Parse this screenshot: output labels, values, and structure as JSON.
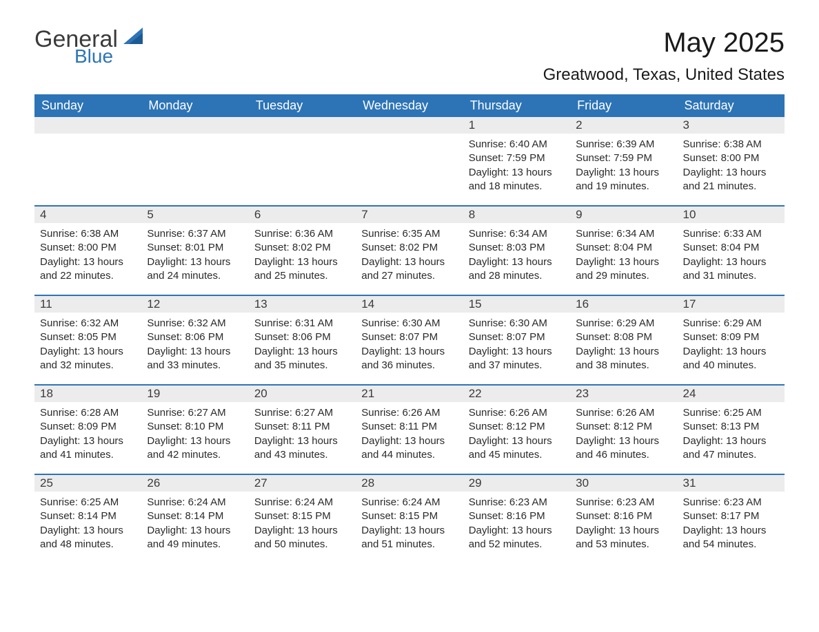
{
  "logo": {
    "general": "General",
    "blue": "Blue"
  },
  "title": "May 2025",
  "location": "Greatwood, Texas, United States",
  "colors": {
    "header_bg": "#2d74b6",
    "header_text": "#ffffff",
    "daynum_bg": "#ececec",
    "border": "#2d74b6",
    "text": "#2a2a2a"
  },
  "weekdays": [
    "Sunday",
    "Monday",
    "Tuesday",
    "Wednesday",
    "Thursday",
    "Friday",
    "Saturday"
  ],
  "weeks": [
    [
      null,
      null,
      null,
      null,
      {
        "n": "1",
        "sunrise": "Sunrise: 6:40 AM",
        "sunset": "Sunset: 7:59 PM",
        "d1": "Daylight: 13 hours",
        "d2": "and 18 minutes."
      },
      {
        "n": "2",
        "sunrise": "Sunrise: 6:39 AM",
        "sunset": "Sunset: 7:59 PM",
        "d1": "Daylight: 13 hours",
        "d2": "and 19 minutes."
      },
      {
        "n": "3",
        "sunrise": "Sunrise: 6:38 AM",
        "sunset": "Sunset: 8:00 PM",
        "d1": "Daylight: 13 hours",
        "d2": "and 21 minutes."
      }
    ],
    [
      {
        "n": "4",
        "sunrise": "Sunrise: 6:38 AM",
        "sunset": "Sunset: 8:00 PM",
        "d1": "Daylight: 13 hours",
        "d2": "and 22 minutes."
      },
      {
        "n": "5",
        "sunrise": "Sunrise: 6:37 AM",
        "sunset": "Sunset: 8:01 PM",
        "d1": "Daylight: 13 hours",
        "d2": "and 24 minutes."
      },
      {
        "n": "6",
        "sunrise": "Sunrise: 6:36 AM",
        "sunset": "Sunset: 8:02 PM",
        "d1": "Daylight: 13 hours",
        "d2": "and 25 minutes."
      },
      {
        "n": "7",
        "sunrise": "Sunrise: 6:35 AM",
        "sunset": "Sunset: 8:02 PM",
        "d1": "Daylight: 13 hours",
        "d2": "and 27 minutes."
      },
      {
        "n": "8",
        "sunrise": "Sunrise: 6:34 AM",
        "sunset": "Sunset: 8:03 PM",
        "d1": "Daylight: 13 hours",
        "d2": "and 28 minutes."
      },
      {
        "n": "9",
        "sunrise": "Sunrise: 6:34 AM",
        "sunset": "Sunset: 8:04 PM",
        "d1": "Daylight: 13 hours",
        "d2": "and 29 minutes."
      },
      {
        "n": "10",
        "sunrise": "Sunrise: 6:33 AM",
        "sunset": "Sunset: 8:04 PM",
        "d1": "Daylight: 13 hours",
        "d2": "and 31 minutes."
      }
    ],
    [
      {
        "n": "11",
        "sunrise": "Sunrise: 6:32 AM",
        "sunset": "Sunset: 8:05 PM",
        "d1": "Daylight: 13 hours",
        "d2": "and 32 minutes."
      },
      {
        "n": "12",
        "sunrise": "Sunrise: 6:32 AM",
        "sunset": "Sunset: 8:06 PM",
        "d1": "Daylight: 13 hours",
        "d2": "and 33 minutes."
      },
      {
        "n": "13",
        "sunrise": "Sunrise: 6:31 AM",
        "sunset": "Sunset: 8:06 PM",
        "d1": "Daylight: 13 hours",
        "d2": "and 35 minutes."
      },
      {
        "n": "14",
        "sunrise": "Sunrise: 6:30 AM",
        "sunset": "Sunset: 8:07 PM",
        "d1": "Daylight: 13 hours",
        "d2": "and 36 minutes."
      },
      {
        "n": "15",
        "sunrise": "Sunrise: 6:30 AM",
        "sunset": "Sunset: 8:07 PM",
        "d1": "Daylight: 13 hours",
        "d2": "and 37 minutes."
      },
      {
        "n": "16",
        "sunrise": "Sunrise: 6:29 AM",
        "sunset": "Sunset: 8:08 PM",
        "d1": "Daylight: 13 hours",
        "d2": "and 38 minutes."
      },
      {
        "n": "17",
        "sunrise": "Sunrise: 6:29 AM",
        "sunset": "Sunset: 8:09 PM",
        "d1": "Daylight: 13 hours",
        "d2": "and 40 minutes."
      }
    ],
    [
      {
        "n": "18",
        "sunrise": "Sunrise: 6:28 AM",
        "sunset": "Sunset: 8:09 PM",
        "d1": "Daylight: 13 hours",
        "d2": "and 41 minutes."
      },
      {
        "n": "19",
        "sunrise": "Sunrise: 6:27 AM",
        "sunset": "Sunset: 8:10 PM",
        "d1": "Daylight: 13 hours",
        "d2": "and 42 minutes."
      },
      {
        "n": "20",
        "sunrise": "Sunrise: 6:27 AM",
        "sunset": "Sunset: 8:11 PM",
        "d1": "Daylight: 13 hours",
        "d2": "and 43 minutes."
      },
      {
        "n": "21",
        "sunrise": "Sunrise: 6:26 AM",
        "sunset": "Sunset: 8:11 PM",
        "d1": "Daylight: 13 hours",
        "d2": "and 44 minutes."
      },
      {
        "n": "22",
        "sunrise": "Sunrise: 6:26 AM",
        "sunset": "Sunset: 8:12 PM",
        "d1": "Daylight: 13 hours",
        "d2": "and 45 minutes."
      },
      {
        "n": "23",
        "sunrise": "Sunrise: 6:26 AM",
        "sunset": "Sunset: 8:12 PM",
        "d1": "Daylight: 13 hours",
        "d2": "and 46 minutes."
      },
      {
        "n": "24",
        "sunrise": "Sunrise: 6:25 AM",
        "sunset": "Sunset: 8:13 PM",
        "d1": "Daylight: 13 hours",
        "d2": "and 47 minutes."
      }
    ],
    [
      {
        "n": "25",
        "sunrise": "Sunrise: 6:25 AM",
        "sunset": "Sunset: 8:14 PM",
        "d1": "Daylight: 13 hours",
        "d2": "and 48 minutes."
      },
      {
        "n": "26",
        "sunrise": "Sunrise: 6:24 AM",
        "sunset": "Sunset: 8:14 PM",
        "d1": "Daylight: 13 hours",
        "d2": "and 49 minutes."
      },
      {
        "n": "27",
        "sunrise": "Sunrise: 6:24 AM",
        "sunset": "Sunset: 8:15 PM",
        "d1": "Daylight: 13 hours",
        "d2": "and 50 minutes."
      },
      {
        "n": "28",
        "sunrise": "Sunrise: 6:24 AM",
        "sunset": "Sunset: 8:15 PM",
        "d1": "Daylight: 13 hours",
        "d2": "and 51 minutes."
      },
      {
        "n": "29",
        "sunrise": "Sunrise: 6:23 AM",
        "sunset": "Sunset: 8:16 PM",
        "d1": "Daylight: 13 hours",
        "d2": "and 52 minutes."
      },
      {
        "n": "30",
        "sunrise": "Sunrise: 6:23 AM",
        "sunset": "Sunset: 8:16 PM",
        "d1": "Daylight: 13 hours",
        "d2": "and 53 minutes."
      },
      {
        "n": "31",
        "sunrise": "Sunrise: 6:23 AM",
        "sunset": "Sunset: 8:17 PM",
        "d1": "Daylight: 13 hours",
        "d2": "and 54 minutes."
      }
    ]
  ]
}
